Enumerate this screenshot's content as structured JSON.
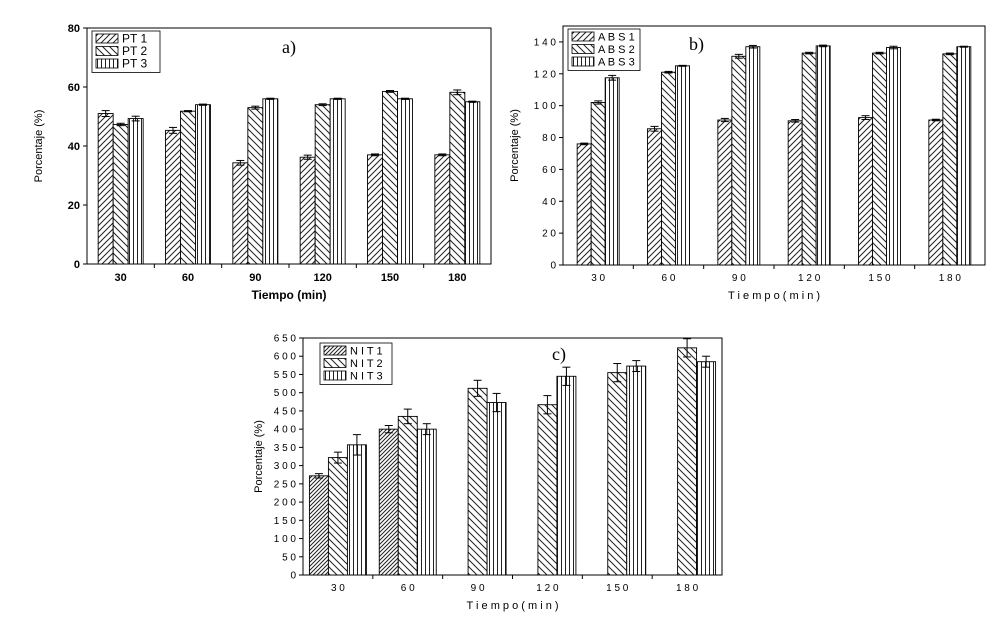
{
  "chart_data": [
    {
      "type": "bar",
      "panel_label": "a)",
      "xlabel": "Tiempo (min)",
      "ylabel": "Porcentaje (%)",
      "categories": [
        "30",
        "60",
        "90",
        "120",
        "150",
        "180"
      ],
      "ylim": [
        0,
        80
      ],
      "yticks": [
        "0",
        "20",
        "40",
        "60",
        "80"
      ],
      "legend_position": "top-left",
      "grid": false,
      "series": [
        {
          "name": "PT 1",
          "pattern": "diag-right",
          "values": [
            51,
            45.3,
            34.3,
            36.2,
            37,
            37
          ],
          "errors": [
            1.0,
            1.0,
            0.8,
            0.7,
            0.3,
            0.3
          ]
        },
        {
          "name": "PT 2",
          "pattern": "diag-left",
          "values": [
            47.3,
            51.8,
            53,
            54,
            58.5,
            58.2
          ],
          "errors": [
            0.4,
            0.2,
            0.5,
            0.3,
            0.3,
            0.8
          ]
        },
        {
          "name": "PT 3",
          "pattern": "vertical",
          "values": [
            49.3,
            54,
            56,
            56,
            56,
            55
          ],
          "errors": [
            0.8,
            0.2,
            0.2,
            0.2,
            0.2,
            0.2
          ]
        }
      ]
    },
    {
      "type": "bar",
      "panel_label": "b)",
      "xlabel": "T i e m p o  ( m i n )",
      "ylabel": "Porcentaje (%)",
      "categories": [
        "3 0",
        "6 0",
        "9 0",
        "1 2 0",
        "1 5 0",
        "1 8 0"
      ],
      "ylim": [
        0,
        150
      ],
      "yticks": [
        "0",
        "2 0",
        "4 0",
        "6 0",
        "8 0",
        "1 0 0",
        "1 2 0",
        "1 4 0"
      ],
      "legend_position": "top-left",
      "grid": false,
      "series": [
        {
          "name": "A B S  1",
          "pattern": "diag-right",
          "values": [
            76,
            85.5,
            91,
            90.5,
            92.5,
            91
          ],
          "errors": [
            0.5,
            1.5,
            1.0,
            0.8,
            1.2,
            0.5
          ]
        },
        {
          "name": "A B S  2",
          "pattern": "diag-left",
          "values": [
            102,
            121,
            131,
            133,
            133,
            132.5
          ],
          "errors": [
            1.0,
            0.5,
            1.2,
            0.5,
            0.5,
            0.5
          ]
        },
        {
          "name": "A B S  3",
          "pattern": "vertical",
          "values": [
            117.5,
            125,
            137,
            137.5,
            136.5,
            137
          ],
          "errors": [
            1.5,
            0.3,
            0.8,
            0.5,
            0.8,
            0.3
          ]
        }
      ]
    },
    {
      "type": "bar",
      "panel_label": "c)",
      "xlabel": "T i e m p o  ( m i n )",
      "ylabel": "Porcentaje (%)",
      "categories": [
        "3 0",
        "6 0",
        "9 0",
        "1 2 0",
        "1 5 0",
        "1 8 0"
      ],
      "ylim": [
        0,
        650
      ],
      "yticks": [
        "0",
        "5 0",
        "1 0 0",
        "1 5 0",
        "2 0 0",
        "2 5 0",
        "3 0 0",
        "3 5 0",
        "4 0 0",
        "4 5 0",
        "5 0 0",
        "5 5 0",
        "6 0 0",
        "6 5 0"
      ],
      "legend_position": "top-left",
      "grid": false,
      "series": [
        {
          "name": "N I T  1",
          "pattern": "diag-right-dense",
          "values": [
            272,
            400,
            null,
            null,
            null,
            null
          ],
          "errors": [
            6,
            10,
            null,
            null,
            null,
            null
          ]
        },
        {
          "name": "N I T  2",
          "pattern": "diag-left",
          "values": [
            322,
            435,
            512,
            467,
            555,
            623
          ],
          "errors": [
            15,
            20,
            22,
            25,
            25,
            25
          ]
        },
        {
          "name": "N I T  3",
          "pattern": "vertical",
          "values": [
            357,
            400,
            473,
            545,
            573,
            585
          ],
          "errors": [
            28,
            15,
            25,
            25,
            15,
            15
          ]
        }
      ]
    }
  ]
}
